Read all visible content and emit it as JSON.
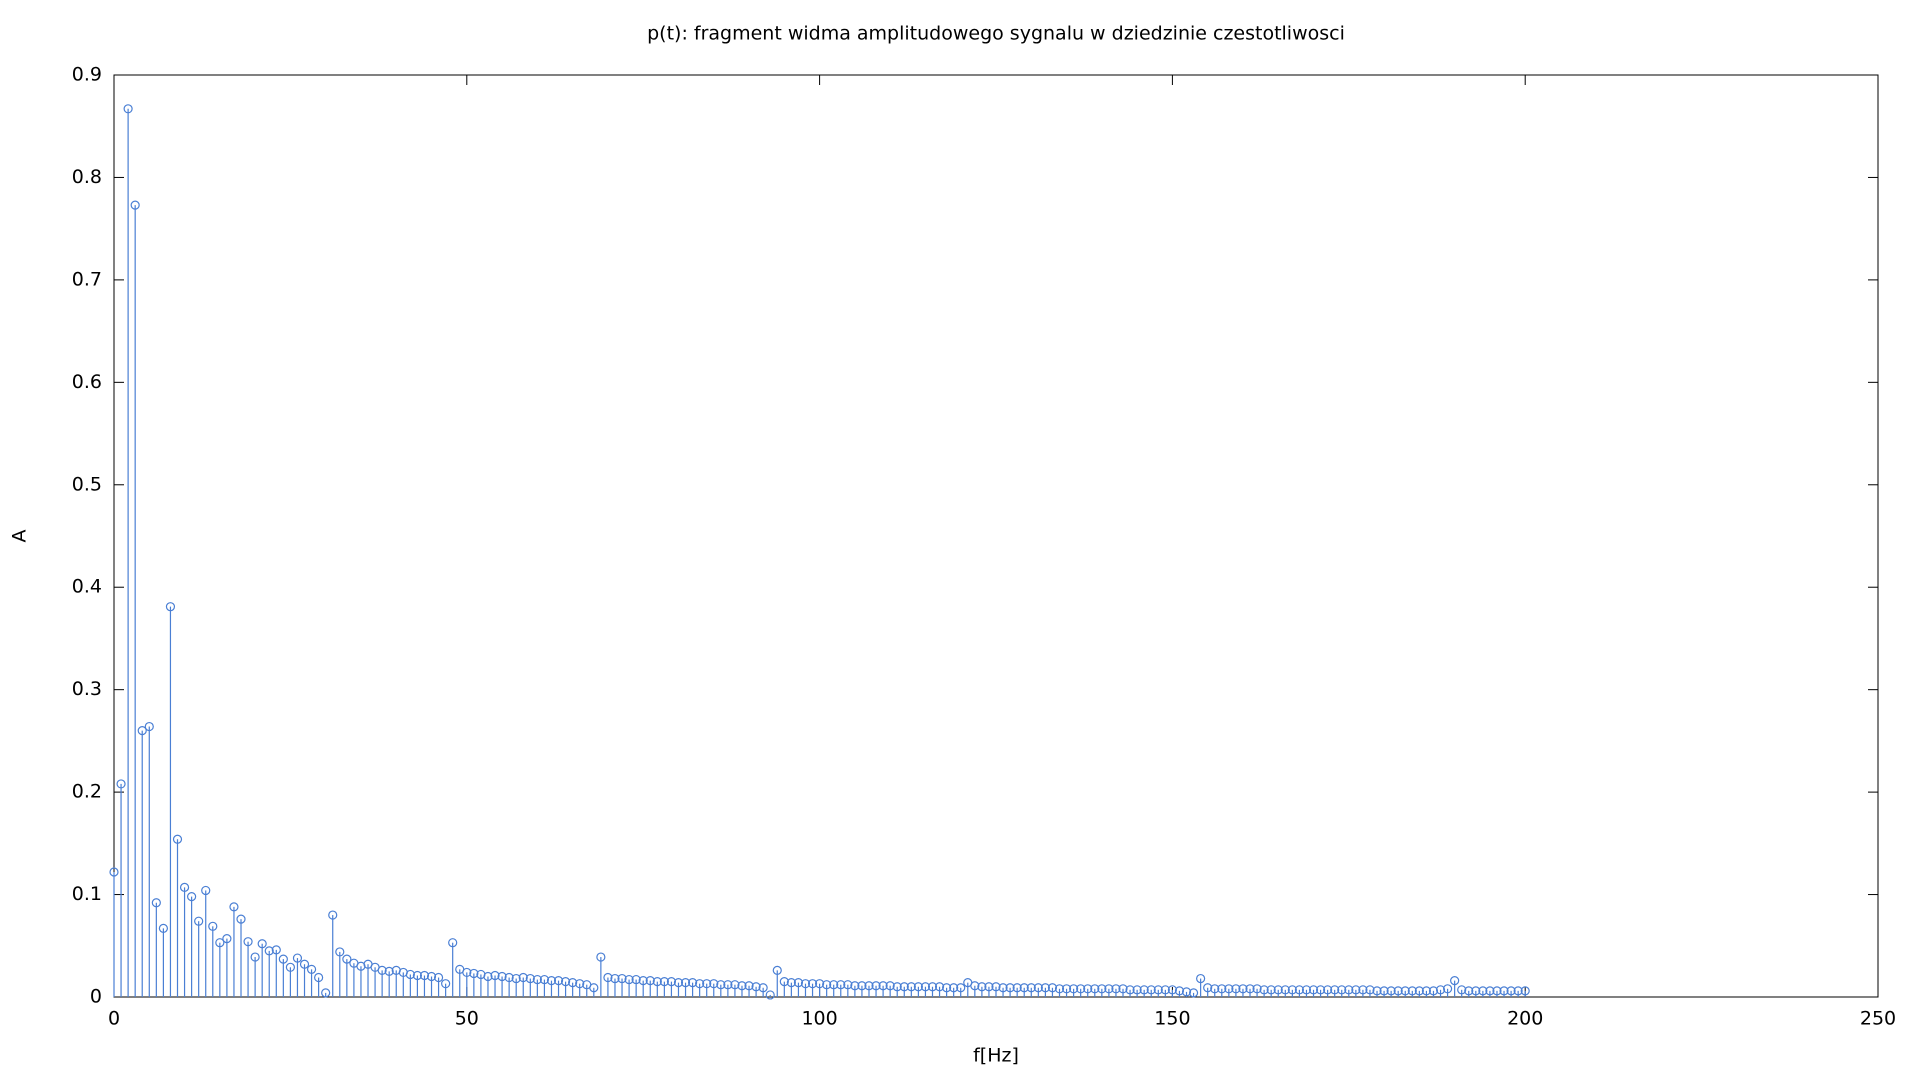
{
  "chart_data": {
    "type": "stem",
    "title": "p(t): fragment widma amplitudowego sygnalu w dziedzinie czestotliwosci",
    "x_label": "f[Hz]",
    "y_label": "A",
    "xlim": [
      0,
      250
    ],
    "xticks": [
      0,
      50,
      100,
      150,
      200,
      250
    ],
    "ylim": [
      0,
      0.9
    ],
    "yticks": [
      0,
      0.1,
      0.2,
      0.3,
      0.4,
      0.5,
      0.6,
      0.7,
      0.8,
      0.9
    ],
    "grid": false,
    "series": [
      {
        "color": "#4a7fd4",
        "x": [
          0,
          1,
          2,
          3,
          4,
          5,
          6,
          7,
          8,
          9,
          10,
          11,
          12,
          13,
          14,
          15,
          16,
          17,
          18,
          19,
          20,
          21,
          22,
          23,
          24,
          25,
          26,
          27,
          28,
          29,
          30,
          31,
          32,
          33,
          34,
          35,
          36,
          37,
          38,
          39,
          40,
          41,
          42,
          43,
          44,
          45,
          46,
          47,
          48,
          49,
          50,
          51,
          52,
          53,
          54,
          55,
          56,
          57,
          58,
          59,
          60,
          61,
          62,
          63,
          64,
          65,
          66,
          67,
          68,
          69,
          70,
          71,
          72,
          73,
          74,
          75,
          76,
          77,
          78,
          79,
          80,
          81,
          82,
          83,
          84,
          85,
          86,
          87,
          88,
          89,
          90,
          91,
          92,
          93,
          94,
          95,
          96,
          97,
          98,
          99,
          100,
          101,
          102,
          103,
          104,
          105,
          106,
          107,
          108,
          109,
          110,
          111,
          112,
          113,
          114,
          115,
          116,
          117,
          118,
          119,
          120,
          121,
          122,
          123,
          124,
          125,
          126,
          127,
          128,
          129,
          130,
          131,
          132,
          133,
          134,
          135,
          136,
          137,
          138,
          139,
          140,
          141,
          142,
          143,
          144,
          145,
          146,
          147,
          148,
          149,
          150,
          151,
          152,
          153,
          154,
          155,
          156,
          157,
          158,
          159,
          160,
          161,
          162,
          163,
          164,
          165,
          166,
          167,
          168,
          169,
          170,
          171,
          172,
          173,
          174,
          175,
          176,
          177,
          178,
          179,
          180,
          181,
          182,
          183,
          184,
          185,
          186,
          187,
          188,
          189,
          190,
          191,
          192,
          193,
          194,
          195,
          196,
          197,
          198,
          199,
          200
        ],
        "values": [
          0.122,
          0.208,
          0.867,
          0.773,
          0.26,
          0.264,
          0.092,
          0.067,
          0.381,
          0.154,
          0.107,
          0.098,
          0.074,
          0.104,
          0.069,
          0.053,
          0.057,
          0.088,
          0.076,
          0.054,
          0.039,
          0.052,
          0.045,
          0.046,
          0.037,
          0.029,
          0.038,
          0.032,
          0.027,
          0.019,
          0.004,
          0.08,
          0.044,
          0.037,
          0.033,
          0.03,
          0.032,
          0.029,
          0.026,
          0.025,
          0.026,
          0.024,
          0.022,
          0.021,
          0.021,
          0.02,
          0.019,
          0.013,
          0.053,
          0.027,
          0.024,
          0.023,
          0.022,
          0.02,
          0.021,
          0.02,
          0.019,
          0.018,
          0.019,
          0.018,
          0.017,
          0.017,
          0.016,
          0.016,
          0.015,
          0.014,
          0.013,
          0.012,
          0.009,
          0.039,
          0.019,
          0.018,
          0.018,
          0.017,
          0.017,
          0.016,
          0.016,
          0.015,
          0.015,
          0.015,
          0.014,
          0.014,
          0.014,
          0.013,
          0.013,
          0.013,
          0.012,
          0.012,
          0.012,
          0.011,
          0.011,
          0.01,
          0.009,
          0.002,
          0.026,
          0.015,
          0.014,
          0.014,
          0.013,
          0.013,
          0.013,
          0.012,
          0.012,
          0.012,
          0.012,
          0.011,
          0.011,
          0.011,
          0.011,
          0.011,
          0.011,
          0.01,
          0.01,
          0.01,
          0.01,
          0.01,
          0.01,
          0.01,
          0.009,
          0.009,
          0.009,
          0.014,
          0.011,
          0.01,
          0.01,
          0.01,
          0.009,
          0.009,
          0.009,
          0.009,
          0.009,
          0.009,
          0.009,
          0.009,
          0.008,
          0.008,
          0.008,
          0.008,
          0.008,
          0.008,
          0.008,
          0.008,
          0.008,
          0.008,
          0.007,
          0.007,
          0.007,
          0.007,
          0.007,
          0.007,
          0.007,
          0.006,
          0.005,
          0.004,
          0.018,
          0.009,
          0.008,
          0.008,
          0.008,
          0.008,
          0.008,
          0.008,
          0.008,
          0.007,
          0.007,
          0.007,
          0.007,
          0.007,
          0.007,
          0.007,
          0.007,
          0.007,
          0.007,
          0.007,
          0.007,
          0.007,
          0.007,
          0.007,
          0.007,
          0.006,
          0.006,
          0.006,
          0.006,
          0.006,
          0.006,
          0.006,
          0.006,
          0.006,
          0.007,
          0.008,
          0.016,
          0.007,
          0.006,
          0.006,
          0.006,
          0.006,
          0.006,
          0.006,
          0.006,
          0.006,
          0.006
        ]
      }
    ]
  }
}
